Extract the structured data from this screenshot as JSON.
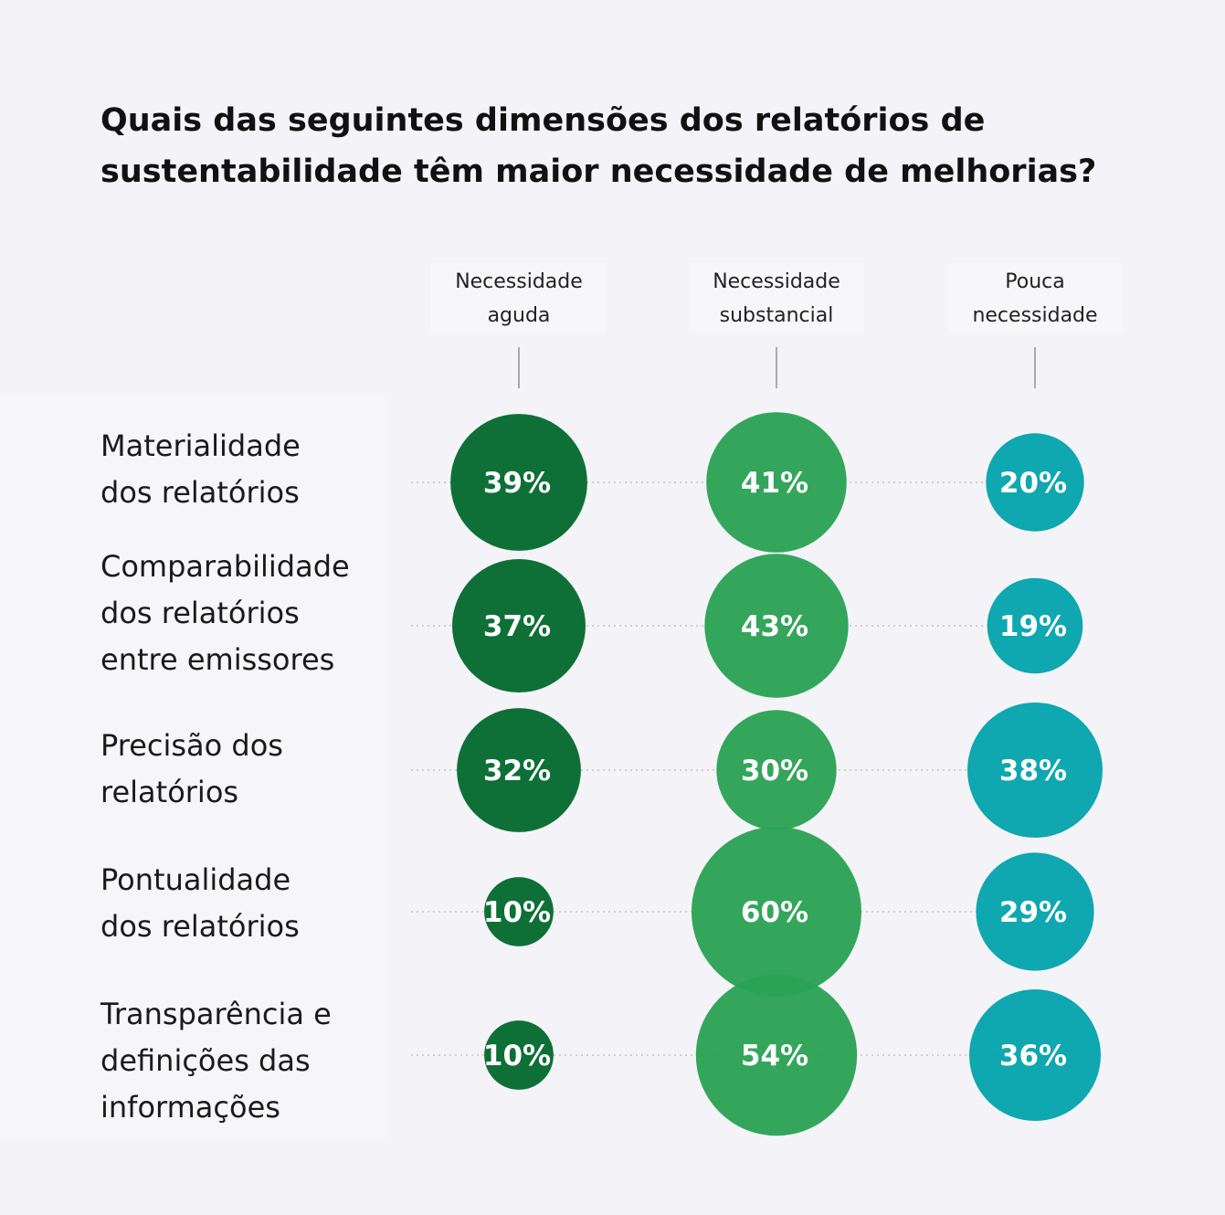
{
  "title_lines": [
    "Quais das seguintes dimensões dos relatórios de",
    "sustentabilidade têm maior necessidade de melhorias?"
  ],
  "chart_data": {
    "type": "bubble-matrix",
    "columns": [
      {
        "name": "Necessidade aguda",
        "lines": [
          "Necessidade",
          "aguda"
        ],
        "color": "#046a2f"
      },
      {
        "name": "Necessidade substancial",
        "lines": [
          "Necessidade",
          "substancial"
        ],
        "color": "#2ba254"
      },
      {
        "name": "Pouca necessidade",
        "lines": [
          "Pouca",
          "necessidade"
        ],
        "color": "#05a3ad"
      }
    ],
    "rows": [
      {
        "name": "Materialidade dos relatórios",
        "lines": [
          "Materialidade",
          "dos relatórios"
        ],
        "values": [
          39,
          41,
          20
        ]
      },
      {
        "name": "Comparabilidade dos relatórios entre emissores",
        "lines": [
          "Comparabilidade",
          "dos relatórios",
          "entre emissores"
        ],
        "values": [
          37,
          43,
          19
        ]
      },
      {
        "name": "Precisão dos relatórios",
        "lines": [
          "Precisão dos",
          "relatórios"
        ],
        "values": [
          32,
          30,
          38
        ]
      },
      {
        "name": "Pontualidade dos relatórios",
        "lines": [
          "Pontualidade",
          "dos relatórios"
        ],
        "values": [
          10,
          60,
          29
        ]
      },
      {
        "name": "Transparência e definições das informações",
        "lines": [
          "Transparência e",
          "definições das",
          "informações"
        ],
        "values": [
          10,
          54,
          36
        ]
      }
    ],
    "unit": "%"
  }
}
